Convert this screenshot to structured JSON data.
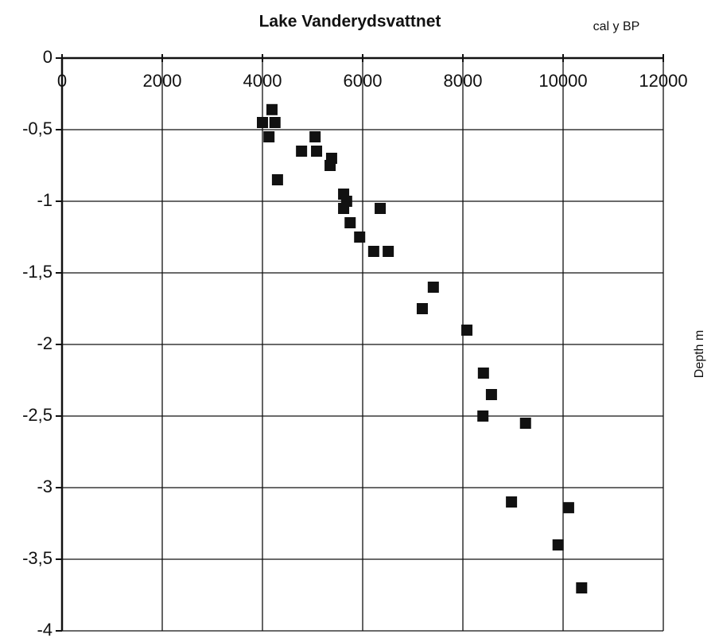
{
  "chart_data": {
    "type": "scatter",
    "title": "Lake Vanderydsvattnet",
    "x_label": "cal y BP",
    "y_label": "Depth m",
    "color": "#111111",
    "grid": true,
    "xlim": [
      0,
      12000
    ],
    "xticks": [
      0,
      2000,
      4000,
      6000,
      8000,
      10000,
      12000
    ],
    "ylim": [
      -4,
      0
    ],
    "yticks": [
      0,
      {
        "value": -0.5,
        "label": "-0,5"
      },
      -1,
      {
        "value": -1.5,
        "label": "-1,5"
      },
      -2,
      {
        "value": -2.5,
        "label": "-2,5"
      },
      -3,
      {
        "value": -3.5,
        "label": "-3,5"
      },
      -4
    ],
    "x": [
      4000,
      4190,
      4250,
      4130,
      4780,
      4300,
      5050,
      5080,
      5380,
      5350,
      5620,
      5680,
      5620,
      6350,
      5750,
      5940,
      6220,
      6510,
      7410,
      7190,
      8080,
      8410,
      8570,
      8400,
      9250,
      8970,
      10110,
      9900,
      10370
    ],
    "values": [
      -0.45,
      -0.36,
      -0.45,
      -0.55,
      -0.65,
      -0.85,
      -0.55,
      -0.65,
      -0.7,
      -0.75,
      -0.95,
      -1.0,
      -1.05,
      -1.05,
      -1.15,
      -1.25,
      -1.35,
      -1.35,
      -1.6,
      -1.75,
      -1.9,
      -2.2,
      -2.35,
      -2.5,
      -2.55,
      -3.1,
      -3.14,
      -3.4,
      -3.7
    ]
  }
}
